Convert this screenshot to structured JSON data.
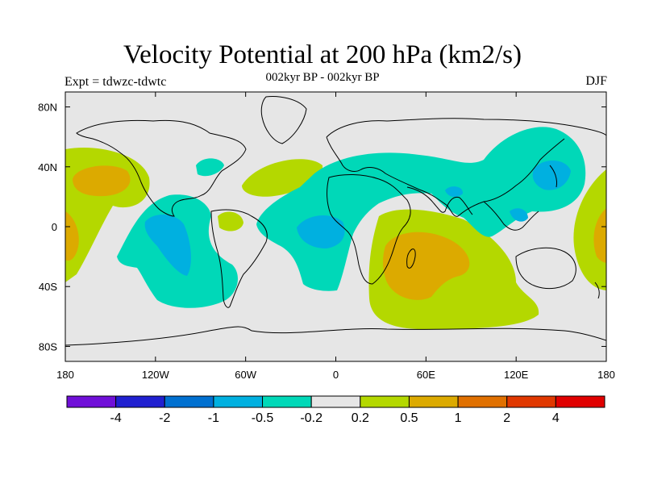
{
  "title": "Velocity Potential at 200 hPa (km2/s)",
  "subtitle": "002kyr BP - 002kyr BP",
  "experiment": "Expt = tdwzc-tdwtc",
  "season": "DJF",
  "map": {
    "projection": "cylindrical-equidistant",
    "lon_range": [
      -180,
      180
    ],
    "lat_range": [
      -90,
      90
    ],
    "background_color": "#e6e6e6",
    "coastline_color": "#000000",
    "x_ticks": [
      "180",
      "120W",
      "60W",
      "0",
      "60E",
      "120E",
      "180"
    ],
    "y_ticks": [
      "80N",
      "40N",
      "0",
      "40S",
      "80S"
    ],
    "contour_fields": [
      {
        "level": "-0.5..-0.2",
        "color": "#00d8b8",
        "region": "North Pacific / East Asia jet band"
      },
      {
        "level": "-0.5..-0.2",
        "color": "#00d8b8",
        "region": "Eastern Pacific / South America"
      },
      {
        "level": "-0.5..-0.2",
        "color": "#00d8b8",
        "region": "Tropical Atlantic / Africa"
      },
      {
        "level": "-1..-0.5",
        "color": "#00b0e0",
        "region": "Western Pacific / Japan"
      },
      {
        "level": "-1..-0.5",
        "color": "#00b0e0",
        "region": "Eastern Pacific"
      },
      {
        "level": "-1..-0.5",
        "color": "#00b0e0",
        "region": "Equatorial Atlantic / West Africa"
      },
      {
        "level": "0.2..0.5",
        "color": "#b4d800",
        "region": "Central Pacific"
      },
      {
        "level": "0.2..0.5",
        "color": "#b4d800",
        "region": "Southern Indian Ocean"
      },
      {
        "level": "0.2..0.5",
        "color": "#b4d800",
        "region": "Central North Atlantic"
      },
      {
        "level": "0.5..1",
        "color": "#dcaa00",
        "region": "Central Pacific maxima"
      },
      {
        "level": "0.5..1",
        "color": "#dcaa00",
        "region": "Southern Indian Ocean maximum"
      }
    ]
  },
  "colorbar": {
    "colors": [
      "#7010d8",
      "#2020d0",
      "#0070d0",
      "#00b0e0",
      "#00d8b8",
      "#e6e6e6",
      "#b4d800",
      "#dcaa00",
      "#e07000",
      "#e03800",
      "#e00000"
    ],
    "labels": [
      "-4",
      "-2",
      "-1",
      "-0.5",
      "-0.2",
      "0.2",
      "0.5",
      "1",
      "2",
      "4"
    ]
  }
}
